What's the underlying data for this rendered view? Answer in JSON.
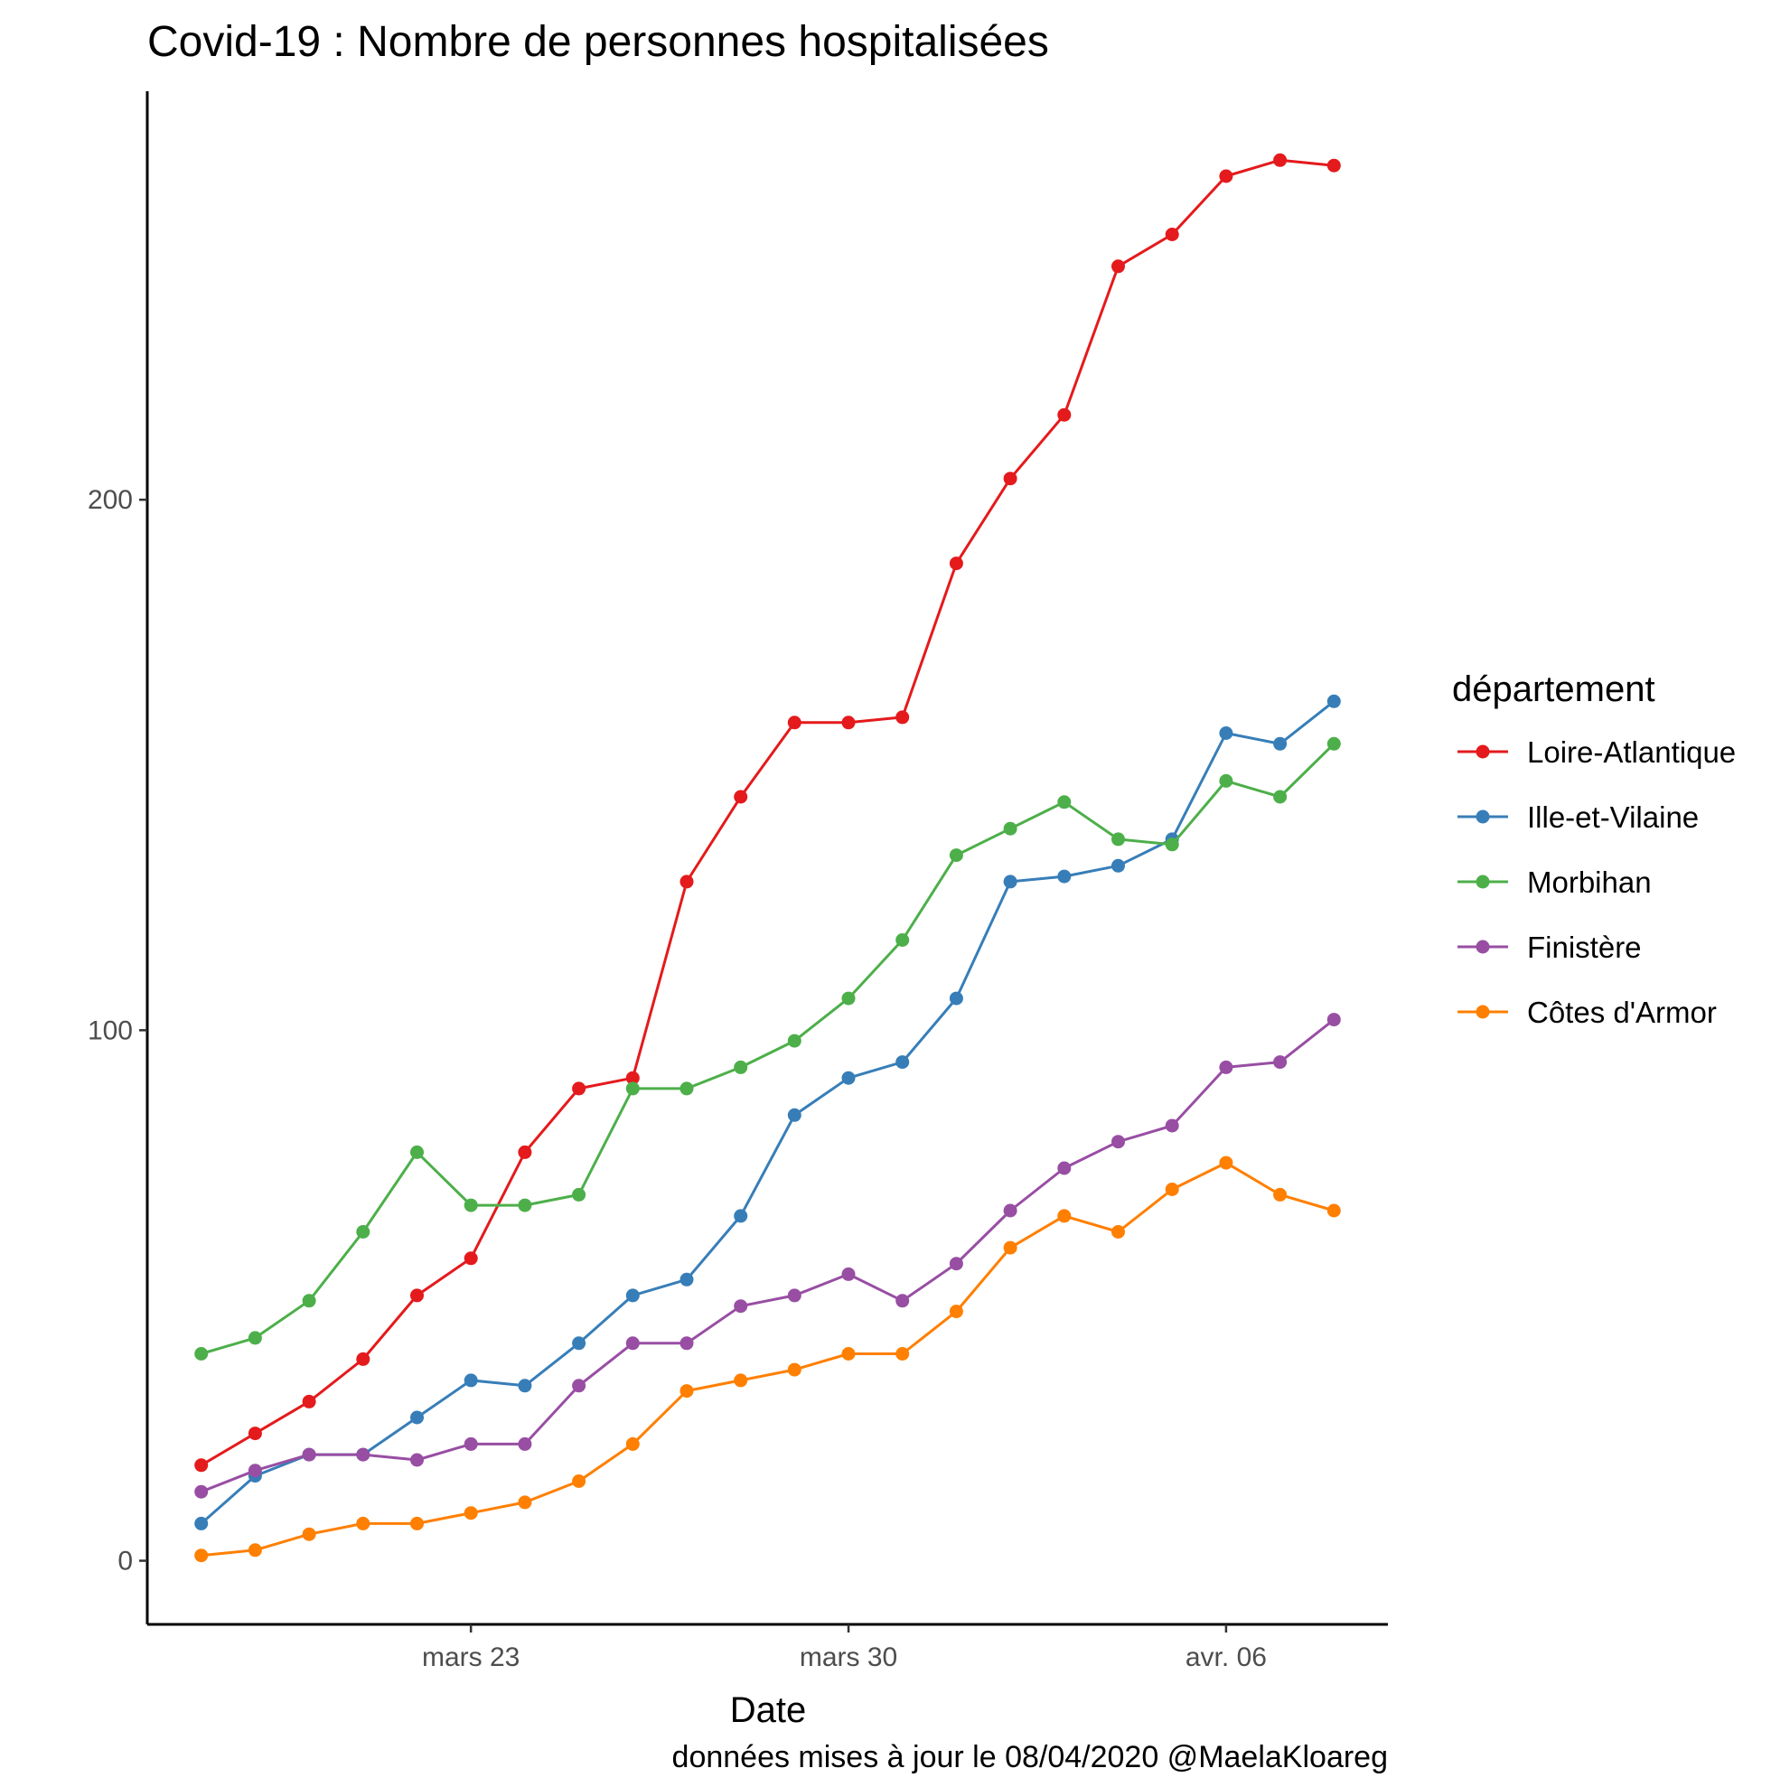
{
  "chart_data": {
    "type": "line",
    "title": "Covid-19 : Nombre de personnes hospitalisées",
    "xlabel": "Date",
    "ylabel": "",
    "caption": "données mises à jour le 08/04/2020 @MaelaKloareg",
    "x": [
      "2020-03-18",
      "2020-03-19",
      "2020-03-20",
      "2020-03-21",
      "2020-03-22",
      "2020-03-23",
      "2020-03-24",
      "2020-03-25",
      "2020-03-26",
      "2020-03-27",
      "2020-03-28",
      "2020-03-29",
      "2020-03-30",
      "2020-03-31",
      "2020-04-01",
      "2020-04-02",
      "2020-04-03",
      "2020-04-04",
      "2020-04-05",
      "2020-04-06",
      "2020-04-07",
      "2020-04-08"
    ],
    "xlim": [
      "2020-03-17",
      "2020-04-09"
    ],
    "x_ticks": [
      {
        "date": "2020-03-23",
        "label": "mars 23"
      },
      {
        "date": "2020-03-30",
        "label": "mars 30"
      },
      {
        "date": "2020-04-06",
        "label": "avr. 06"
      }
    ],
    "ylim": [
      -12,
      277
    ],
    "y_ticks": [
      0,
      100,
      200
    ],
    "legend": {
      "title": "département",
      "position": "right"
    },
    "series": [
      {
        "name": "Loire-Atlantique",
        "color": "#e41a1c",
        "values": [
          18,
          24,
          30,
          38,
          50,
          57,
          77,
          89,
          91,
          128,
          144,
          158,
          158,
          159,
          188,
          204,
          216,
          244,
          250,
          261,
          264,
          263
        ]
      },
      {
        "name": "Ille-et-Vilaine",
        "color": "#377eb8",
        "values": [
          7,
          16,
          20,
          20,
          27,
          34,
          33,
          41,
          50,
          53,
          65,
          84,
          91,
          94,
          106,
          128,
          129,
          131,
          136,
          156,
          154,
          162
        ]
      },
      {
        "name": "Morbihan",
        "color": "#4daf4a",
        "values": [
          39,
          42,
          49,
          62,
          77,
          67,
          67,
          69,
          89,
          89,
          93,
          98,
          106,
          117,
          133,
          138,
          143,
          136,
          135,
          147,
          144,
          154
        ]
      },
      {
        "name": "Finistère",
        "color": "#984ea3",
        "values": [
          13,
          17,
          20,
          20,
          19,
          22,
          22,
          33,
          41,
          41,
          48,
          50,
          54,
          49,
          56,
          66,
          74,
          79,
          82,
          93,
          94,
          102
        ]
      },
      {
        "name": "Côtes d'Armor",
        "color": "#ff7f00",
        "values": [
          1,
          2,
          5,
          7,
          7,
          9,
          11,
          15,
          22,
          32,
          34,
          36,
          39,
          39,
          47,
          59,
          65,
          62,
          70,
          75,
          69,
          66
        ]
      }
    ]
  }
}
